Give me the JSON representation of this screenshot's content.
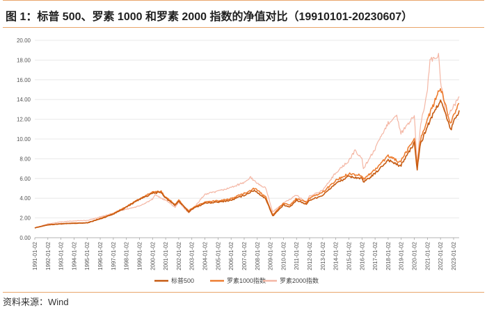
{
  "header": {
    "title": "图 1：标普 500、罗素 1000 和罗素 2000 指数的净值对比（19910101-20230607）"
  },
  "footer": {
    "source": "资料来源：Wind"
  },
  "colors": {
    "sp500": "#c65a11",
    "russell1000": "#ed7d31",
    "russell2000": "#f4b6a4",
    "grid": "#e3e3e3",
    "accent_rule": "#e9a56a"
  },
  "chart_data": {
    "type": "line",
    "title": "",
    "xlabel": "",
    "ylabel": "",
    "ylim": [
      0,
      20
    ],
    "yticks": [
      "0.00",
      "2.00",
      "4.00",
      "6.00",
      "8.00",
      "10.00",
      "12.00",
      "14.00",
      "16.00",
      "18.00",
      "20.00"
    ],
    "x_categories": [
      "1991-01-02",
      "1992-01-02",
      "1993-01-02",
      "1994-01-02",
      "1995-01-02",
      "1996-01-02",
      "1997-01-02",
      "1998-01-02",
      "1999-01-02",
      "2000-01-02",
      "2001-01-02",
      "2002-01-02",
      "2003-01-02",
      "2004-01-02",
      "2005-01-02",
      "2006-01-02",
      "2007-01-02",
      "2008-01-02",
      "2009-01-02",
      "2010-01-02",
      "2011-01-02",
      "2012-01-02",
      "2013-01-02",
      "2014-01-02",
      "2015-01-02",
      "2016-01-02",
      "2017-01-02",
      "2018-01-02",
      "2019-01-02",
      "2020-01-02",
      "2021-01-02",
      "2022-01-02",
      "2023-01-02"
    ],
    "grid": true,
    "legend": "bottom",
    "series": [
      {
        "name": "标普500",
        "x": [
          "1991-01-02",
          "1992-01-02",
          "1993-01-02",
          "1994-01-02",
          "1995-01-02",
          "1996-01-02",
          "1997-01-02",
          "1998-01-02",
          "1999-01-02",
          "2000-01-02",
          "2000-09-01",
          "2001-01-02",
          "2001-09-21",
          "2002-01-02",
          "2002-10-09",
          "2003-01-02",
          "2004-01-02",
          "2005-01-02",
          "2006-01-02",
          "2007-01-02",
          "2007-10-09",
          "2008-01-02",
          "2008-09-01",
          "2009-03-09",
          "2010-01-02",
          "2010-07-01",
          "2011-01-02",
          "2011-10-03",
          "2012-01-02",
          "2013-01-02",
          "2014-01-02",
          "2015-01-02",
          "2016-01-02",
          "2016-02-11",
          "2017-01-02",
          "2018-01-02",
          "2018-12-24",
          "2019-01-02",
          "2020-01-02",
          "2020-03-23",
          "2020-06-08",
          "2021-01-02",
          "2022-01-02",
          "2022-10-12",
          "2023-01-02",
          "2023-06-07"
        ],
        "y": [
          1.0,
          1.3,
          1.4,
          1.45,
          1.5,
          1.9,
          2.4,
          3.1,
          3.9,
          4.5,
          4.6,
          4.0,
          3.3,
          3.7,
          2.6,
          2.9,
          3.5,
          3.6,
          3.8,
          4.3,
          4.8,
          4.6,
          3.9,
          2.2,
          3.3,
          3.1,
          3.8,
          3.4,
          3.8,
          4.3,
          5.5,
          6.2,
          6.0,
          5.6,
          6.5,
          7.9,
          7.2,
          7.4,
          9.6,
          6.9,
          9.3,
          11.3,
          14.0,
          10.9,
          11.7,
          12.9
        ]
      },
      {
        "name": "罗素1000指数",
        "x": [
          "1991-01-02",
          "1992-01-02",
          "1993-01-02",
          "1994-01-02",
          "1995-01-02",
          "1996-01-02",
          "1997-01-02",
          "1998-01-02",
          "1999-01-02",
          "2000-01-02",
          "2000-09-01",
          "2001-01-02",
          "2001-09-21",
          "2002-01-02",
          "2002-10-09",
          "2003-01-02",
          "2004-01-02",
          "2005-01-02",
          "2006-01-02",
          "2007-01-02",
          "2007-10-09",
          "2008-01-02",
          "2008-09-01",
          "2009-03-09",
          "2010-01-02",
          "2010-07-01",
          "2011-01-02",
          "2011-10-03",
          "2012-01-02",
          "2013-01-02",
          "2014-01-02",
          "2015-01-02",
          "2016-01-02",
          "2016-02-11",
          "2017-01-02",
          "2018-01-02",
          "2018-12-24",
          "2019-01-02",
          "2020-01-02",
          "2020-03-23",
          "2020-06-08",
          "2021-01-02",
          "2022-01-02",
          "2022-10-12",
          "2023-01-02",
          "2023-06-07"
        ],
        "y": [
          1.0,
          1.32,
          1.42,
          1.48,
          1.52,
          1.95,
          2.45,
          3.15,
          3.95,
          4.6,
          4.7,
          4.1,
          3.4,
          3.8,
          2.7,
          3.0,
          3.6,
          3.75,
          3.95,
          4.5,
          5.0,
          4.8,
          4.1,
          2.3,
          3.5,
          3.3,
          4.0,
          3.6,
          4.0,
          4.6,
          5.8,
          6.5,
          6.3,
          5.9,
          6.9,
          8.3,
          7.6,
          7.8,
          10.1,
          7.2,
          9.8,
          12.0,
          15.2,
          11.6,
          12.4,
          13.6
        ]
      },
      {
        "name": "罗素2000指数",
        "x": [
          "1991-01-02",
          "1992-01-02",
          "1993-01-02",
          "1994-01-02",
          "1995-01-02",
          "1996-01-02",
          "1997-01-02",
          "1998-01-02",
          "1999-01-02",
          "2000-01-02",
          "2000-03-10",
          "2001-01-02",
          "2001-09-21",
          "2002-01-02",
          "2002-10-09",
          "2003-01-02",
          "2004-01-02",
          "2005-01-02",
          "2006-01-02",
          "2007-01-02",
          "2007-07-01",
          "2008-01-02",
          "2008-09-01",
          "2009-03-09",
          "2010-01-02",
          "2011-01-02",
          "2011-10-03",
          "2012-01-02",
          "2013-01-02",
          "2014-01-02",
          "2015-01-02",
          "2015-06-23",
          "2016-01-02",
          "2016-02-11",
          "2017-01-02",
          "2018-01-02",
          "2018-08-31",
          "2018-12-24",
          "2019-01-02",
          "2020-01-02",
          "2020-03-23",
          "2020-06-08",
          "2021-01-02",
          "2021-03-15",
          "2021-11-08",
          "2022-01-02",
          "2022-06-16",
          "2023-01-02",
          "2023-06-07"
        ],
        "y": [
          1.0,
          1.4,
          1.6,
          1.7,
          1.75,
          2.1,
          2.5,
          2.9,
          3.2,
          3.9,
          4.3,
          3.8,
          3.1,
          3.6,
          2.5,
          2.8,
          4.4,
          4.7,
          5.1,
          5.6,
          6.1,
          5.5,
          5.0,
          2.6,
          3.5,
          4.3,
          3.6,
          4.2,
          4.8,
          6.6,
          7.8,
          8.8,
          8.0,
          7.0,
          9.0,
          11.6,
          12.5,
          10.4,
          10.6,
          12.3,
          7.3,
          11.0,
          15.0,
          18.0,
          18.4,
          15.9,
          12.2,
          13.3,
          14.3
        ]
      }
    ]
  }
}
